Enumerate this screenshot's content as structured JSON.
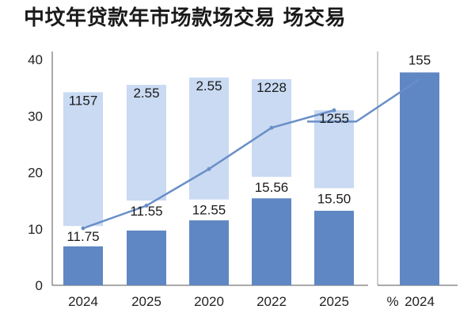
{
  "title": "中坟年贷款年市场款场交易  场交易",
  "colors": {
    "bar_light": "#c9daf2",
    "bar_dark": "#5f87c3",
    "line": "#6a8fc8",
    "axis": "#555555",
    "text": "#1a1a1a"
  },
  "chart_data": [
    {
      "type": "bar",
      "title": "中坟年贷款年市场款场交易  场交易",
      "categories": [
        "2024",
        "2025",
        "2020",
        "2022",
        "2025"
      ],
      "ylim": [
        0,
        40
      ],
      "yticks": [
        0,
        10,
        20,
        30,
        40
      ],
      "grid": false,
      "series": [
        {
          "kind": "bar",
          "values": [
            6.9,
            9.7,
            11.5,
            15.4,
            13.2
          ]
        },
        {
          "kind": "floating-bar",
          "low": [
            10.5,
            15.0,
            15.2,
            19.2,
            17.2
          ],
          "high": [
            34.2,
            35.5,
            36.8,
            36.5,
            31.0
          ]
        },
        {
          "kind": "line",
          "values": [
            10.1,
            14.1,
            20.6,
            27.9,
            31.0
          ]
        }
      ],
      "labels": {
        "top": [
          "1157",
          "2.55",
          "2.55",
          "1228",
          "1255"
        ],
        "bottom": [
          "11.75",
          "11.55",
          "12.55",
          "15.56",
          "15.50"
        ]
      }
    },
    {
      "type": "bar",
      "categories": [
        "2024"
      ],
      "category_prefix": "%",
      "values": [
        37.7
      ],
      "ylim": [
        0,
        40
      ],
      "top_label": "155",
      "line_segment": [
        29.0,
        29.0,
        36.5
      ]
    }
  ]
}
